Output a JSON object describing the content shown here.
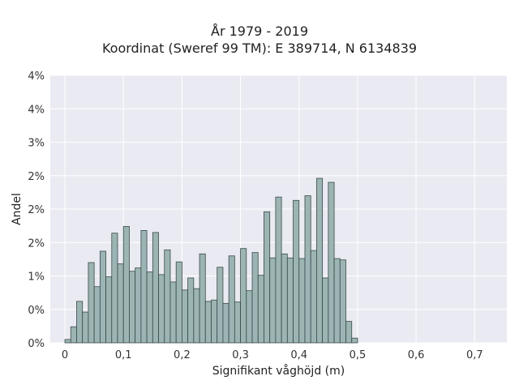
{
  "chart_data": {
    "type": "bar",
    "title_lines": [
      "År 1979 - 2019",
      "Koordinat (Sweref 99 TM): E 389714, N 6134839"
    ],
    "xlabel": "Signifikant våghöjd (m)",
    "ylabel": "Andel",
    "xlim": [
      -0.025,
      0.755
    ],
    "ylim": [
      0,
      0.04
    ],
    "bin_width": 0.01,
    "bin_start": 0.0,
    "x_ticks": [
      {
        "value": 0.0,
        "label": "0"
      },
      {
        "value": 0.1,
        "label": "0,1"
      },
      {
        "value": 0.2,
        "label": "0,2"
      },
      {
        "value": 0.3,
        "label": "0,3"
      },
      {
        "value": 0.4,
        "label": "0,4"
      },
      {
        "value": 0.5,
        "label": "0,5"
      },
      {
        "value": 0.6,
        "label": "0,6"
      },
      {
        "value": 0.7,
        "label": "0,7"
      }
    ],
    "y_ticks": [
      {
        "value": 0.0,
        "label": "0%"
      },
      {
        "value": 0.005,
        "label": "0%"
      },
      {
        "value": 0.01,
        "label": "1%"
      },
      {
        "value": 0.015,
        "label": "2%"
      },
      {
        "value": 0.02,
        "label": "2%"
      },
      {
        "value": 0.025,
        "label": "2%"
      },
      {
        "value": 0.03,
        "label": "3%"
      },
      {
        "value": 0.035,
        "label": "4%"
      },
      {
        "value": 0.04,
        "label": "4%"
      }
    ],
    "values": [
      0.0005,
      0.0024,
      0.0062,
      0.0046,
      0.012,
      0.0084,
      0.0137,
      0.0099,
      0.0164,
      0.0118,
      0.0174,
      0.0107,
      0.0112,
      0.0168,
      0.0106,
      0.0165,
      0.0102,
      0.0139,
      0.0091,
      0.0121,
      0.0079,
      0.0097,
      0.0081,
      0.0133,
      0.0062,
      0.0064,
      0.0113,
      0.0059,
      0.013,
      0.0061,
      0.0141,
      0.0078,
      0.0135,
      0.0101,
      0.0196,
      0.0127,
      0.0218,
      0.0133,
      0.0127,
      0.0213,
      0.0126,
      0.022,
      0.0138,
      0.0246,
      0.0097,
      0.024,
      0.0126,
      0.0124,
      0.0032,
      0.0007
    ],
    "colors": {
      "bar_fill": "#9cb4b4",
      "bar_stroke": "#3a4a4a",
      "plot_bg": "#eaeaf2",
      "grid": "#ffffff"
    }
  }
}
